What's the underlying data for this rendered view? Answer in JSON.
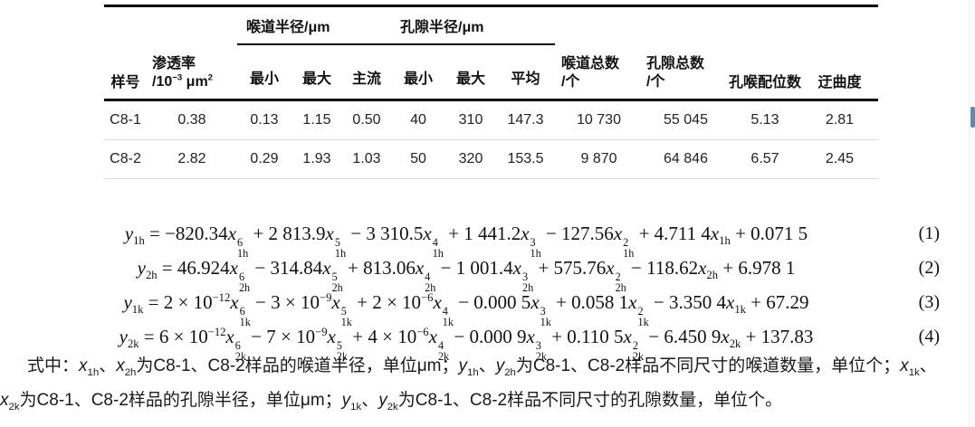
{
  "table": {
    "headers": {
      "sample": "样号",
      "permeability_line1": "渗透率",
      "permeability_line2": "/10^{−3} μm^{2}",
      "throat_radius_group": "喉道半径/μm",
      "pore_radius_group": "孔隙半径/μm",
      "throat_sub": [
        "最小",
        "最大",
        "主流"
      ],
      "pore_sub": [
        "最小",
        "最大",
        "平均"
      ],
      "throat_total_line1": "喉道总数",
      "throat_total_line2": "/个",
      "pore_total_line1": "孔隙总数",
      "pore_total_line2": "/个",
      "coordination": "孔喉配位数",
      "tortuosity": "迂曲度"
    },
    "rows": [
      [
        "C8-1",
        "0.38",
        "0.13",
        "1.15",
        "0.50",
        "40",
        "310",
        "147.3",
        "10 730",
        "55 045",
        "5.13",
        "2.81"
      ],
      [
        "C8-2",
        "2.82",
        "0.29",
        "1.93",
        "1.03",
        "50",
        "320",
        "153.5",
        "9 870",
        "64 846",
        "6.57",
        "2.45"
      ]
    ]
  },
  "equations": [
    {
      "formula": "y_{1h} = −820.34x_{1h}^{6} + 2 813.9x_{1h}^{5} − 3 310.5x_{1h}^{4} + 1 441.2x_{1h}^{3} − 127.56x_{1h}^{2} + 4.711 4x_{1h} + 0.071 5",
      "number": "(1)"
    },
    {
      "formula": "y_{2h} = 46.924x_{2h}^{6} − 314.84x_{2h}^{5} + 813.06x_{2h}^{4} − 1 001.4x_{2h}^{3} + 575.76x_{2h}^{2} − 118.62x_{2h} + 6.978 1",
      "number": "(2)"
    },
    {
      "formula": "y_{1k} = 2 × 10^{−12}x_{1k}^{6} − 3 × 10^{−9}x_{1k}^{5} + 2 × 10^{−6}x_{1k}^{4} − 0.000 5x_{1k}^{3} + 0.058 1x_{1k}^{2} − 3.350 4x_{1k} + 67.29",
      "number": "(3)"
    },
    {
      "formula": "y_{2k} = 6 × 10^{−12}x_{2k}^{6} − 7 × 10^{−9}x_{2k}^{5} + 4 × 10^{−6}x_{2k}^{4} − 0.000 9x_{2k}^{3} + 0.110 5x_{2k}^{2} − 6.450 9x_{2k} + 137.83",
      "number": "(4)"
    }
  ],
  "note": {
    "line1": "式中：x_{1h}、x_{2h}为C8-1、C8-2样品的喉道半径，单位μm；y_{1h}、y_{2h}为C8-1、C8-2样品不同尺寸的喉道数量，单位个；x_{1k}、",
    "line2": "x_{2k}为C8-1、C8-2样品的孔隙半径，单位μm；y_{1k}、y_{2k}为C8-1、C8-2样品不同尺寸的孔隙数量，单位个。"
  },
  "scrollbar": {
    "thumb_color": "#5b8ab8"
  }
}
